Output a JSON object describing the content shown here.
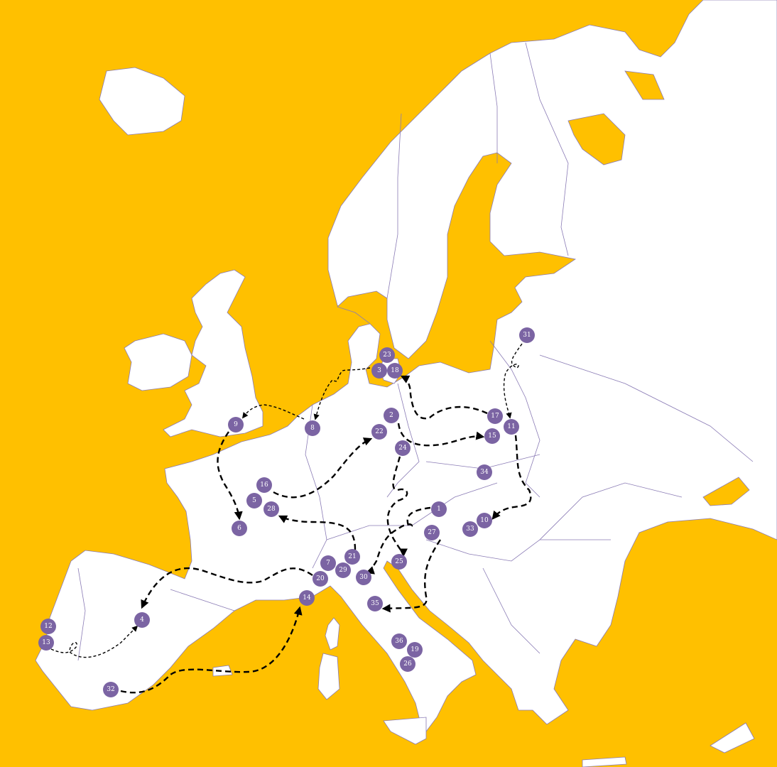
{
  "colors": {
    "sea": "#FFC000",
    "land": "#FFFFFF",
    "border": "#8A7BB5",
    "marker": "#7B64A3",
    "marker_text": "#FFFFFF",
    "route": "#000000"
  },
  "markers": [
    "1",
    "2",
    "3",
    "4",
    "5",
    "6",
    "7",
    "8",
    "9",
    "10",
    "11",
    "12",
    "13",
    "14",
    "15",
    "16",
    "17",
    "18",
    "19",
    "20",
    "21",
    "22",
    "23",
    "24",
    "25",
    "26",
    "27",
    "28",
    "29",
    "30",
    "31",
    "32",
    "33",
    "34",
    "35",
    "36"
  ],
  "routes": [
    {
      "from": "31",
      "to": "11",
      "style": "thin"
    },
    {
      "from": "11",
      "to": "10",
      "style": "thick"
    },
    {
      "from": "17",
      "to": "18",
      "style": "thick"
    },
    {
      "from": "2",
      "to": "15",
      "style": "thick"
    },
    {
      "from": "3",
      "to": "8",
      "style": "thin"
    },
    {
      "from": "8",
      "to": "9",
      "style": "thin"
    },
    {
      "from": "9",
      "to": "6",
      "style": "thick"
    },
    {
      "from": "16",
      "to": "22",
      "style": "thick"
    },
    {
      "from": "21",
      "to": "28",
      "style": "thick"
    },
    {
      "from": "20",
      "to": "4",
      "style": "thick"
    },
    {
      "from": "13",
      "to": "4",
      "style": "thin"
    },
    {
      "from": "32",
      "to": "14",
      "style": "thick"
    },
    {
      "from": "24",
      "to": "25",
      "style": "thick"
    },
    {
      "from": "1",
      "to": "30",
      "style": "thick"
    },
    {
      "from": "27",
      "to": "35",
      "style": "thick"
    }
  ]
}
